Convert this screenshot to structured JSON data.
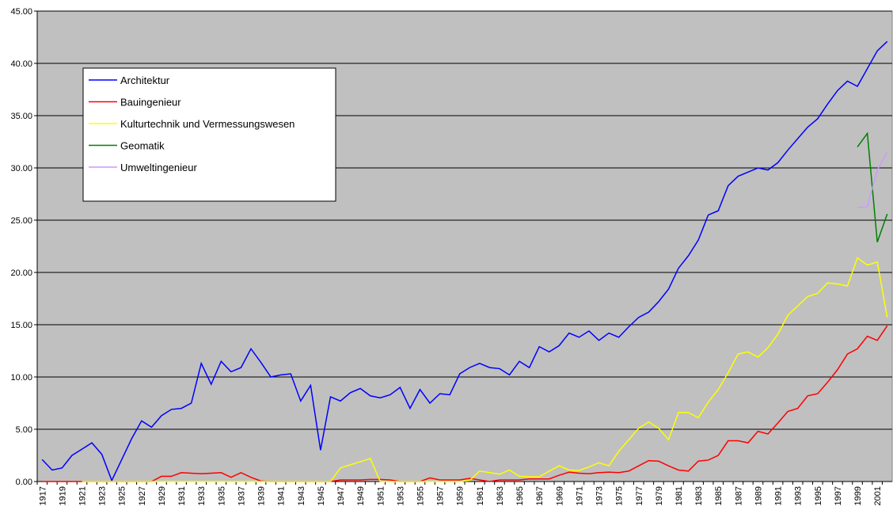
{
  "chart_data": {
    "type": "line",
    "categories": [
      "1917",
      null,
      "1919",
      null,
      "1921",
      null,
      "1923",
      null,
      "1925",
      null,
      "1927",
      null,
      "1929",
      null,
      "1931",
      null,
      "1933",
      null,
      "1935",
      null,
      "1937",
      null,
      "1939",
      null,
      "1941",
      null,
      "1943",
      null,
      "1945",
      null,
      "1947",
      null,
      "1949",
      null,
      "1951",
      null,
      "1953",
      null,
      "1955",
      null,
      "1957",
      null,
      "1959",
      null,
      "1961",
      null,
      "1963",
      null,
      "1965",
      null,
      "1967",
      null,
      "1969",
      null,
      "1971",
      null,
      "1973",
      null,
      "1975",
      null,
      "1977",
      null,
      "1979",
      null,
      "1981",
      null,
      "1983",
      null,
      "1985",
      null,
      "1987",
      null,
      "1989",
      null,
      "1991",
      null,
      "1993",
      null,
      "1995",
      null,
      "1997",
      null,
      "1999",
      null,
      "2001",
      null
    ],
    "series": [
      {
        "name": "Architektur",
        "color": "#0000ff",
        "values": [
          2.1,
          1.1,
          1.3,
          2.5,
          3.1,
          3.7,
          2.6,
          0.1,
          2.1,
          4.1,
          5.8,
          5.2,
          6.3,
          6.9,
          7.0,
          7.5,
          11.3,
          9.3,
          11.5,
          10.5,
          10.9,
          12.7,
          11.4,
          10.0,
          10.2,
          10.3,
          7.7,
          9.2,
          3.0,
          8.1,
          7.7,
          8.5,
          8.9,
          8.2,
          8.0,
          8.3,
          9.0,
          7.0,
          8.8,
          7.5,
          8.4,
          8.3,
          10.3,
          10.9,
          11.3,
          10.9,
          10.8,
          10.2,
          11.5,
          10.9,
          12.9,
          12.4,
          13.0,
          14.2,
          13.8,
          14.4,
          13.5,
          14.2,
          13.8,
          14.8,
          15.7,
          16.2,
          17.2,
          18.4,
          20.4,
          21.6,
          23.1,
          25.5,
          25.9,
          28.3,
          29.2,
          29.6,
          30.0,
          29.8,
          30.5,
          31.7,
          32.8,
          33.9,
          34.7,
          36.1,
          37.4,
          38.3,
          37.8,
          39.5,
          41.2,
          42.1
        ]
      },
      {
        "name": "Bauingenieur",
        "color": "#ff0000",
        "values": [
          0,
          0,
          0,
          0,
          0,
          0,
          0,
          0,
          0,
          0,
          0,
          0,
          0.5,
          0.5,
          0.85,
          0.8,
          0.75,
          0.8,
          0.85,
          0.4,
          0.85,
          0.4,
          0.05,
          0,
          0,
          0,
          0,
          0,
          0,
          0,
          0.15,
          0.15,
          0.15,
          0.2,
          0.2,
          0.15,
          0,
          0,
          0,
          0.35,
          0.15,
          0.15,
          0.15,
          0.3,
          0.15,
          0,
          0.15,
          0.15,
          0.15,
          0.25,
          0.25,
          0.25,
          0.6,
          0.9,
          0.8,
          0.75,
          0.85,
          0.9,
          0.85,
          1.0,
          1.5,
          2.0,
          1.95,
          1.5,
          1.1,
          1.0,
          1.95,
          2.05,
          2.5,
          3.9,
          3.9,
          3.7,
          4.8,
          4.55,
          5.6,
          6.7,
          7.0,
          8.2,
          8.4,
          9.5,
          10.7,
          12.2,
          12.7,
          13.9,
          13.5,
          14.9
        ]
      },
      {
        "name": "Kulturtechnik und Vermessungswesen",
        "color": "#ffff00",
        "values": [
          null,
          null,
          null,
          null,
          0,
          0,
          0,
          0,
          0,
          0,
          0,
          0,
          0,
          0,
          0,
          0,
          0,
          0,
          0,
          0,
          0,
          0,
          0,
          0,
          0,
          0,
          0,
          0,
          0,
          0,
          1.3,
          1.6,
          1.9,
          2.2,
          0,
          0,
          0,
          0,
          0,
          0,
          0,
          0,
          0,
          0.1,
          1.0,
          0.85,
          0.7,
          1.1,
          0.5,
          0.45,
          0.45,
          1.0,
          1.5,
          1.1,
          1.05,
          1.4,
          1.8,
          1.5,
          2.9,
          4.0,
          5.1,
          5.7,
          5.1,
          4.0,
          6.6,
          6.6,
          6.1,
          7.6,
          8.8,
          10.4,
          12.2,
          12.4,
          11.9,
          12.8,
          14.1,
          15.9,
          16.8,
          17.7,
          18.0,
          19.0,
          18.9,
          18.7,
          21.4,
          20.7,
          21.0,
          15.7
        ]
      },
      {
        "name": "Geomatik",
        "color": "#008000",
        "values": [
          null,
          null,
          null,
          null,
          null,
          null,
          null,
          null,
          null,
          null,
          null,
          null,
          null,
          null,
          null,
          null,
          null,
          null,
          null,
          null,
          null,
          null,
          null,
          null,
          null,
          null,
          null,
          null,
          null,
          null,
          null,
          null,
          null,
          null,
          null,
          null,
          null,
          null,
          null,
          null,
          null,
          null,
          null,
          null,
          null,
          null,
          null,
          null,
          null,
          null,
          null,
          null,
          null,
          null,
          null,
          null,
          null,
          null,
          null,
          null,
          null,
          null,
          null,
          null,
          null,
          null,
          null,
          null,
          null,
          null,
          null,
          null,
          null,
          null,
          null,
          null,
          null,
          null,
          null,
          null,
          null,
          null,
          32.0,
          33.3,
          22.9,
          25.6
        ]
      },
      {
        "name": "Umweltingenieur",
        "color": "#cc99ff",
        "values": [
          null,
          null,
          null,
          null,
          null,
          null,
          null,
          null,
          null,
          null,
          null,
          null,
          null,
          null,
          null,
          null,
          null,
          null,
          null,
          null,
          null,
          null,
          null,
          null,
          null,
          null,
          null,
          null,
          null,
          null,
          null,
          null,
          null,
          null,
          null,
          null,
          null,
          null,
          null,
          null,
          null,
          null,
          null,
          null,
          null,
          null,
          null,
          null,
          null,
          null,
          null,
          null,
          null,
          null,
          null,
          null,
          null,
          null,
          null,
          null,
          null,
          null,
          null,
          null,
          null,
          null,
          null,
          null,
          null,
          null,
          null,
          null,
          null,
          null,
          null,
          null,
          null,
          null,
          null,
          null,
          null,
          null,
          26.2,
          26.3,
          29.8,
          31.5
        ]
      }
    ],
    "ylim": [
      0,
      45
    ],
    "yticks": [
      {
        "value": 0,
        "label": "0.00"
      },
      {
        "value": 5,
        "label": "5.00"
      },
      {
        "value": 10,
        "label": "10.00"
      },
      {
        "value": 15,
        "label": "15.00"
      },
      {
        "value": 20,
        "label": "20.00"
      },
      {
        "value": 25,
        "label": "25.00"
      },
      {
        "value": 30,
        "label": "30.00"
      },
      {
        "value": 35,
        "label": "35.00"
      },
      {
        "value": 40,
        "label": "40.00"
      },
      {
        "value": 45,
        "label": "45.00"
      }
    ],
    "grid": true,
    "legend": "upper left",
    "background": "#c0c0c0"
  }
}
